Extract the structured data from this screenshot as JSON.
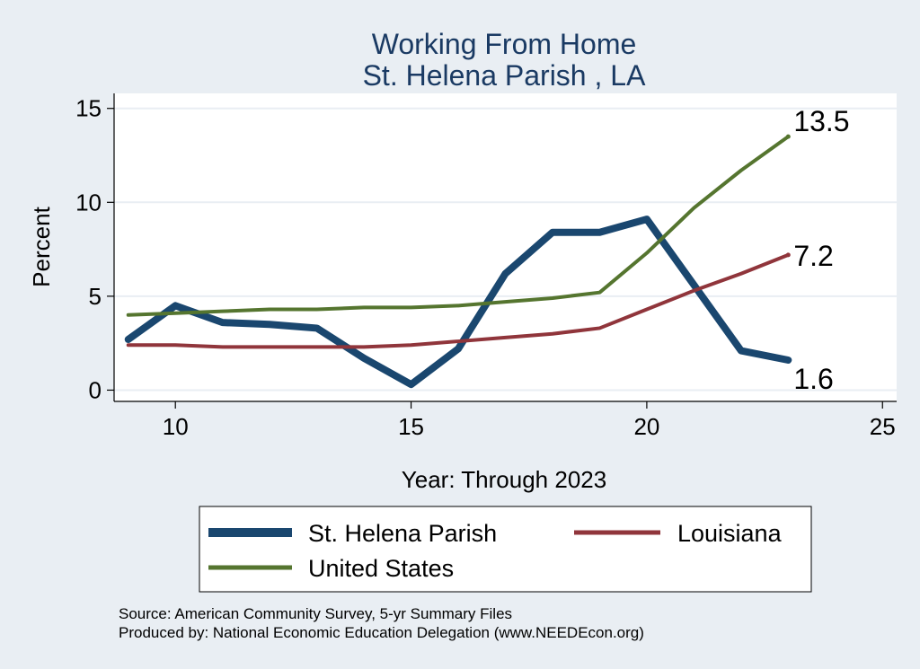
{
  "chart_data": {
    "type": "line",
    "title": "Working From Home",
    "subtitle": "St. Helena Parish , LA",
    "xlabel": "Year: Through 2023",
    "ylabel": "Percent",
    "xlim": [
      8.7,
      25.3
    ],
    "ylim": [
      -0.6,
      15.8
    ],
    "x_ticks": [
      10,
      15,
      20,
      25
    ],
    "y_ticks": [
      0,
      5,
      10,
      15
    ],
    "grid": true,
    "legend_position": "bottom",
    "series": [
      {
        "name": "St. Helena Parish",
        "color": "#1a476f",
        "x": [
          9,
          10,
          11,
          12,
          13,
          14,
          15,
          16,
          17,
          18,
          19,
          20,
          21,
          22,
          23
        ],
        "y": [
          2.7,
          4.5,
          3.6,
          3.5,
          3.3,
          1.7,
          0.3,
          2.2,
          6.2,
          8.4,
          8.4,
          9.1,
          5.6,
          2.1,
          1.6
        ],
        "end_label": "1.6"
      },
      {
        "name": "Louisiana",
        "color": "#90353b",
        "x": [
          9,
          10,
          11,
          12,
          13,
          14,
          15,
          16,
          17,
          18,
          19,
          20,
          21,
          22,
          23
        ],
        "y": [
          2.4,
          2.4,
          2.3,
          2.3,
          2.3,
          2.3,
          2.4,
          2.6,
          2.8,
          3.0,
          3.3,
          4.3,
          5.3,
          6.2,
          7.2
        ],
        "end_label": "7.2"
      },
      {
        "name": "United States",
        "color": "#55752f",
        "x": [
          9,
          10,
          11,
          12,
          13,
          14,
          15,
          16,
          17,
          18,
          19,
          20,
          21,
          22,
          23
        ],
        "y": [
          4.0,
          4.1,
          4.2,
          4.3,
          4.3,
          4.4,
          4.4,
          4.5,
          4.7,
          4.9,
          5.2,
          7.3,
          9.7,
          11.7,
          13.5
        ],
        "end_label": "13.5"
      }
    ]
  },
  "source_line1": "Source: American Community Survey, 5-yr Summary Files",
  "source_line2": "Produced by: National Economic Education Delegation (www.NEEDEcon.org)"
}
